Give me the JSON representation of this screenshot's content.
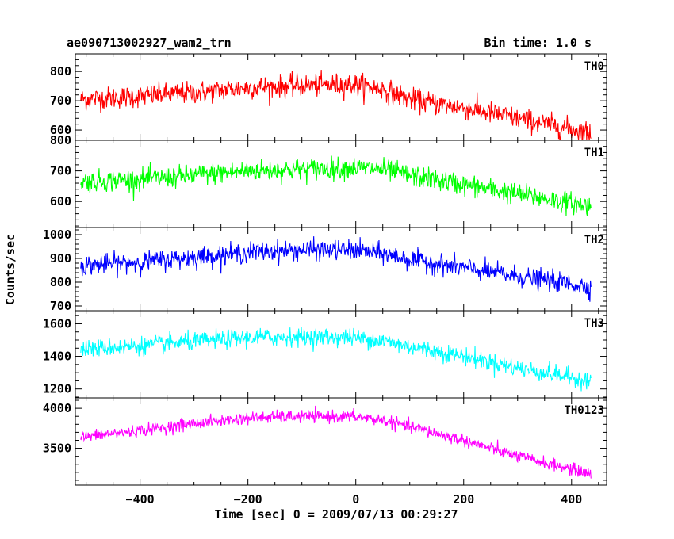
{
  "header": {
    "left": "ae090713002927_wam2_trn",
    "right": "Bin time: 1.0 s"
  },
  "chart_data": {
    "type": "line",
    "title": "ae090713002927_wam2_trn",
    "subtitle": "Bin time: 1.0 s",
    "xlabel": "Time [sec] 0 = 2009/07/13 00:29:27",
    "ylabel": "Counts/sec",
    "xlim": [
      -520,
      465
    ],
    "x_ticks": [
      -400,
      -200,
      0,
      200,
      400
    ],
    "x_tick_labels": [
      "−400",
      "−200",
      "0",
      "200",
      "400"
    ],
    "x_range_data": [
      -510,
      436
    ],
    "grid": false,
    "panels": [
      {
        "name": "TH0",
        "color": "#ff0000",
        "ylim": [
          565,
          860
        ],
        "y_ticks": [
          600,
          700,
          800
        ],
        "y_tick_labels": [
          "600",
          "700",
          "800"
        ],
        "trend": [
          [
            -510,
            705
          ],
          [
            -400,
            715
          ],
          [
            -300,
            728
          ],
          [
            -200,
            745
          ],
          [
            -100,
            752
          ],
          [
            0,
            755
          ],
          [
            50,
            740
          ],
          [
            100,
            705
          ],
          [
            200,
            675
          ],
          [
            300,
            640
          ],
          [
            436,
            590
          ]
        ],
        "noise": 38
      },
      {
        "name": "TH1",
        "color": "#00ff00",
        "ylim": [
          515,
          800
        ],
        "y_ticks": [
          600,
          700,
          800
        ],
        "y_tick_labels": [
          "600",
          "700",
          "800"
        ],
        "trend": [
          [
            -510,
            665
          ],
          [
            -400,
            672
          ],
          [
            -300,
            685
          ],
          [
            -200,
            700
          ],
          [
            -100,
            705
          ],
          [
            0,
            710
          ],
          [
            50,
            705
          ],
          [
            100,
            685
          ],
          [
            200,
            655
          ],
          [
            300,
            625
          ],
          [
            436,
            585
          ]
        ],
        "noise": 35
      },
      {
        "name": "TH2",
        "color": "#0000ff",
        "ylim": [
          680,
          1030
        ],
        "y_ticks": [
          700,
          800,
          900,
          1000
        ],
        "y_tick_labels": [
          "700",
          "800",
          "900",
          "1000"
        ],
        "trend": [
          [
            -510,
            870
          ],
          [
            -400,
            885
          ],
          [
            -300,
            905
          ],
          [
            -200,
            925
          ],
          [
            -100,
            935
          ],
          [
            0,
            935
          ],
          [
            50,
            920
          ],
          [
            100,
            895
          ],
          [
            200,
            860
          ],
          [
            300,
            825
          ],
          [
            436,
            780
          ]
        ],
        "noise": 42
      },
      {
        "name": "TH3",
        "color": "#00ffff",
        "ylim": [
          1145,
          1680
        ],
        "y_ticks": [
          1200,
          1400,
          1600
        ],
        "y_tick_labels": [
          "1200",
          "1400",
          "1600"
        ],
        "trend": [
          [
            -510,
            1445
          ],
          [
            -400,
            1465
          ],
          [
            -300,
            1490
          ],
          [
            -200,
            1515
          ],
          [
            -100,
            1520
          ],
          [
            0,
            1515
          ],
          [
            50,
            1495
          ],
          [
            100,
            1460
          ],
          [
            200,
            1400
          ],
          [
            300,
            1330
          ],
          [
            436,
            1250
          ]
        ],
        "noise": 55
      },
      {
        "name": "TH0123",
        "color": "#ff00ff",
        "ylim": [
          3040,
          4130
        ],
        "y_ticks": [
          3500,
          4000
        ],
        "y_tick_labels": [
          "3500",
          "4000"
        ],
        "trend": [
          [
            -510,
            3640
          ],
          [
            -400,
            3720
          ],
          [
            -300,
            3810
          ],
          [
            -200,
            3880
          ],
          [
            -100,
            3900
          ],
          [
            0,
            3895
          ],
          [
            50,
            3850
          ],
          [
            100,
            3770
          ],
          [
            200,
            3600
          ],
          [
            300,
            3400
          ],
          [
            436,
            3180
          ]
        ],
        "noise": 75
      }
    ]
  }
}
